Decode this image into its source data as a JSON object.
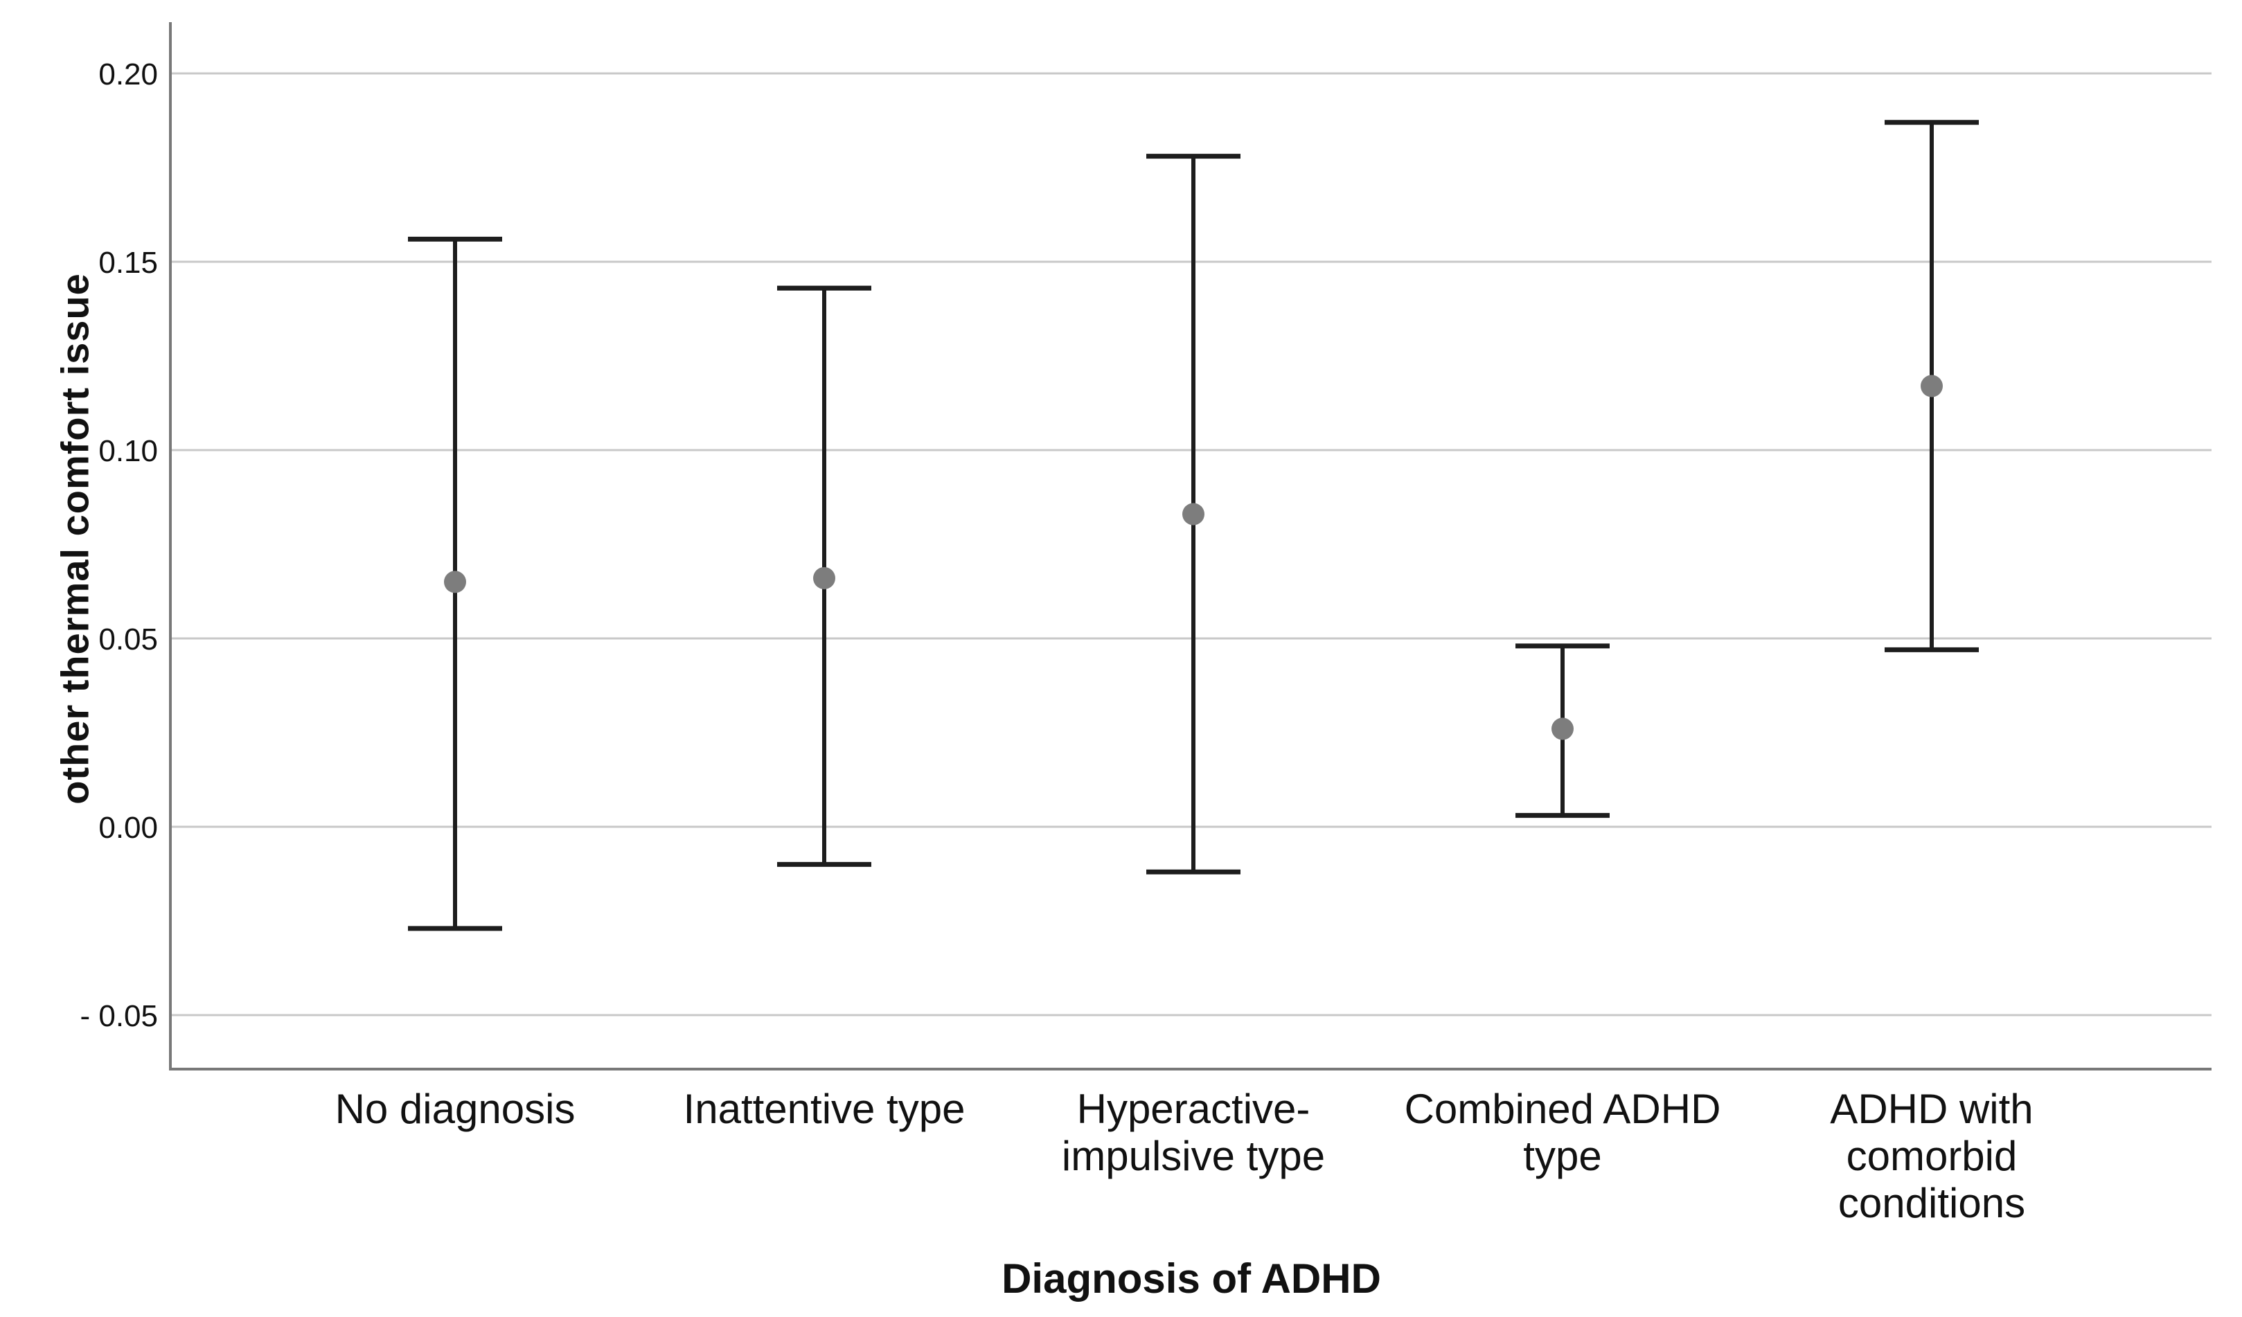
{
  "chart_data": {
    "type": "scatter_error_bar",
    "title": "",
    "xlabel": "Diagnosis of ADHD",
    "ylabel": "other thermal comfort issue",
    "categories": [
      "No diagnosis",
      "Inattentive type",
      "Hyperactive-\nimpulsive type",
      "Combined ADHD\ntype",
      "ADHD with\ncomorbid\nconditions"
    ],
    "series": [
      {
        "name": "mean",
        "values": [
          0.065,
          0.066,
          0.083,
          0.026,
          0.117
        ]
      },
      {
        "name": "ci_upper",
        "values": [
          0.156,
          0.143,
          0.178,
          0.048,
          0.187
        ]
      },
      {
        "name": "ci_lower",
        "values": [
          -0.027,
          -0.01,
          -0.012,
          0.003,
          0.047
        ]
      }
    ],
    "ytick_values": [
      0.2,
      0.15,
      0.1,
      0.05,
      0.0,
      -0.05
    ],
    "ytick_labels": [
      "0.20",
      "0.15",
      "0.10",
      "0.05",
      "0.00",
      "- 0.05"
    ],
    "ylim": [
      -0.05,
      0.2
    ],
    "grid": "horizontal",
    "legend": "none",
    "marker_shape": "circle",
    "colors": {
      "background": "#ffffff",
      "gridline": "#c8c8c8",
      "axis": "#787878",
      "error_bar": "#1d1d1d",
      "marker": "#7d7d7d",
      "text": "#111111"
    }
  }
}
